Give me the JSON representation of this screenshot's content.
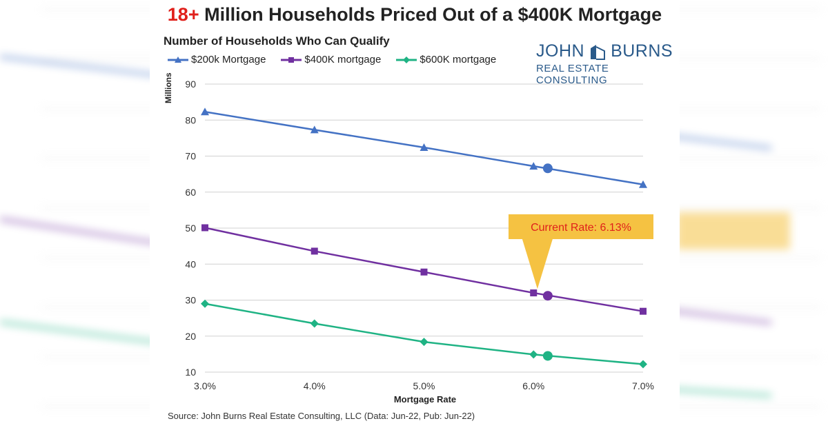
{
  "title": {
    "accent": "18+",
    "rest": " Million Households Priced Out of a $400K Mortgage"
  },
  "logo": {
    "top_left": "JOHN",
    "top_right": "BURNS",
    "bottom": "REAL ESTATE CONSULTING"
  },
  "source": "Source: John Burns Real Estate Consulting, LLC (Data: Jun-22, Pub: Jun-22)",
  "chart_data": {
    "type": "line",
    "title": "Number of Households Who Can Qualify",
    "xlabel": "Mortgage Rate",
    "ylabel": "Millions",
    "x": [
      3.0,
      4.0,
      5.0,
      6.0,
      7.0
    ],
    "x_tick_labels": [
      "3.0%",
      "4.0%",
      "5.0%",
      "6.0%",
      "7.0%"
    ],
    "xlim": [
      3.0,
      7.0
    ],
    "ylim": [
      10,
      90
    ],
    "y_ticks": [
      10,
      20,
      30,
      40,
      50,
      60,
      70,
      80,
      90
    ],
    "grid": true,
    "legend_position": "top-left",
    "series": [
      {
        "name": "$200k Mortgage",
        "color": "#4472c4",
        "marker": "triangle",
        "values": [
          82.3,
          77.3,
          72.4,
          67.2,
          62.1
        ]
      },
      {
        "name": "$400K mortgage",
        "color": "#7030a0",
        "marker": "square",
        "values": [
          50.1,
          43.6,
          37.8,
          32.0,
          26.9
        ]
      },
      {
        "name": "$600K mortgage",
        "color": "#1fb384",
        "marker": "diamond",
        "values": [
          29.0,
          23.5,
          18.4,
          14.9,
          12.2
        ]
      }
    ],
    "current_rate": {
      "x": 6.13,
      "label": "Current Rate: 6.13%",
      "values": [
        66.6,
        31.2,
        14.5
      ],
      "callout_color": "#f5c242",
      "label_color": "#e0201b"
    }
  }
}
